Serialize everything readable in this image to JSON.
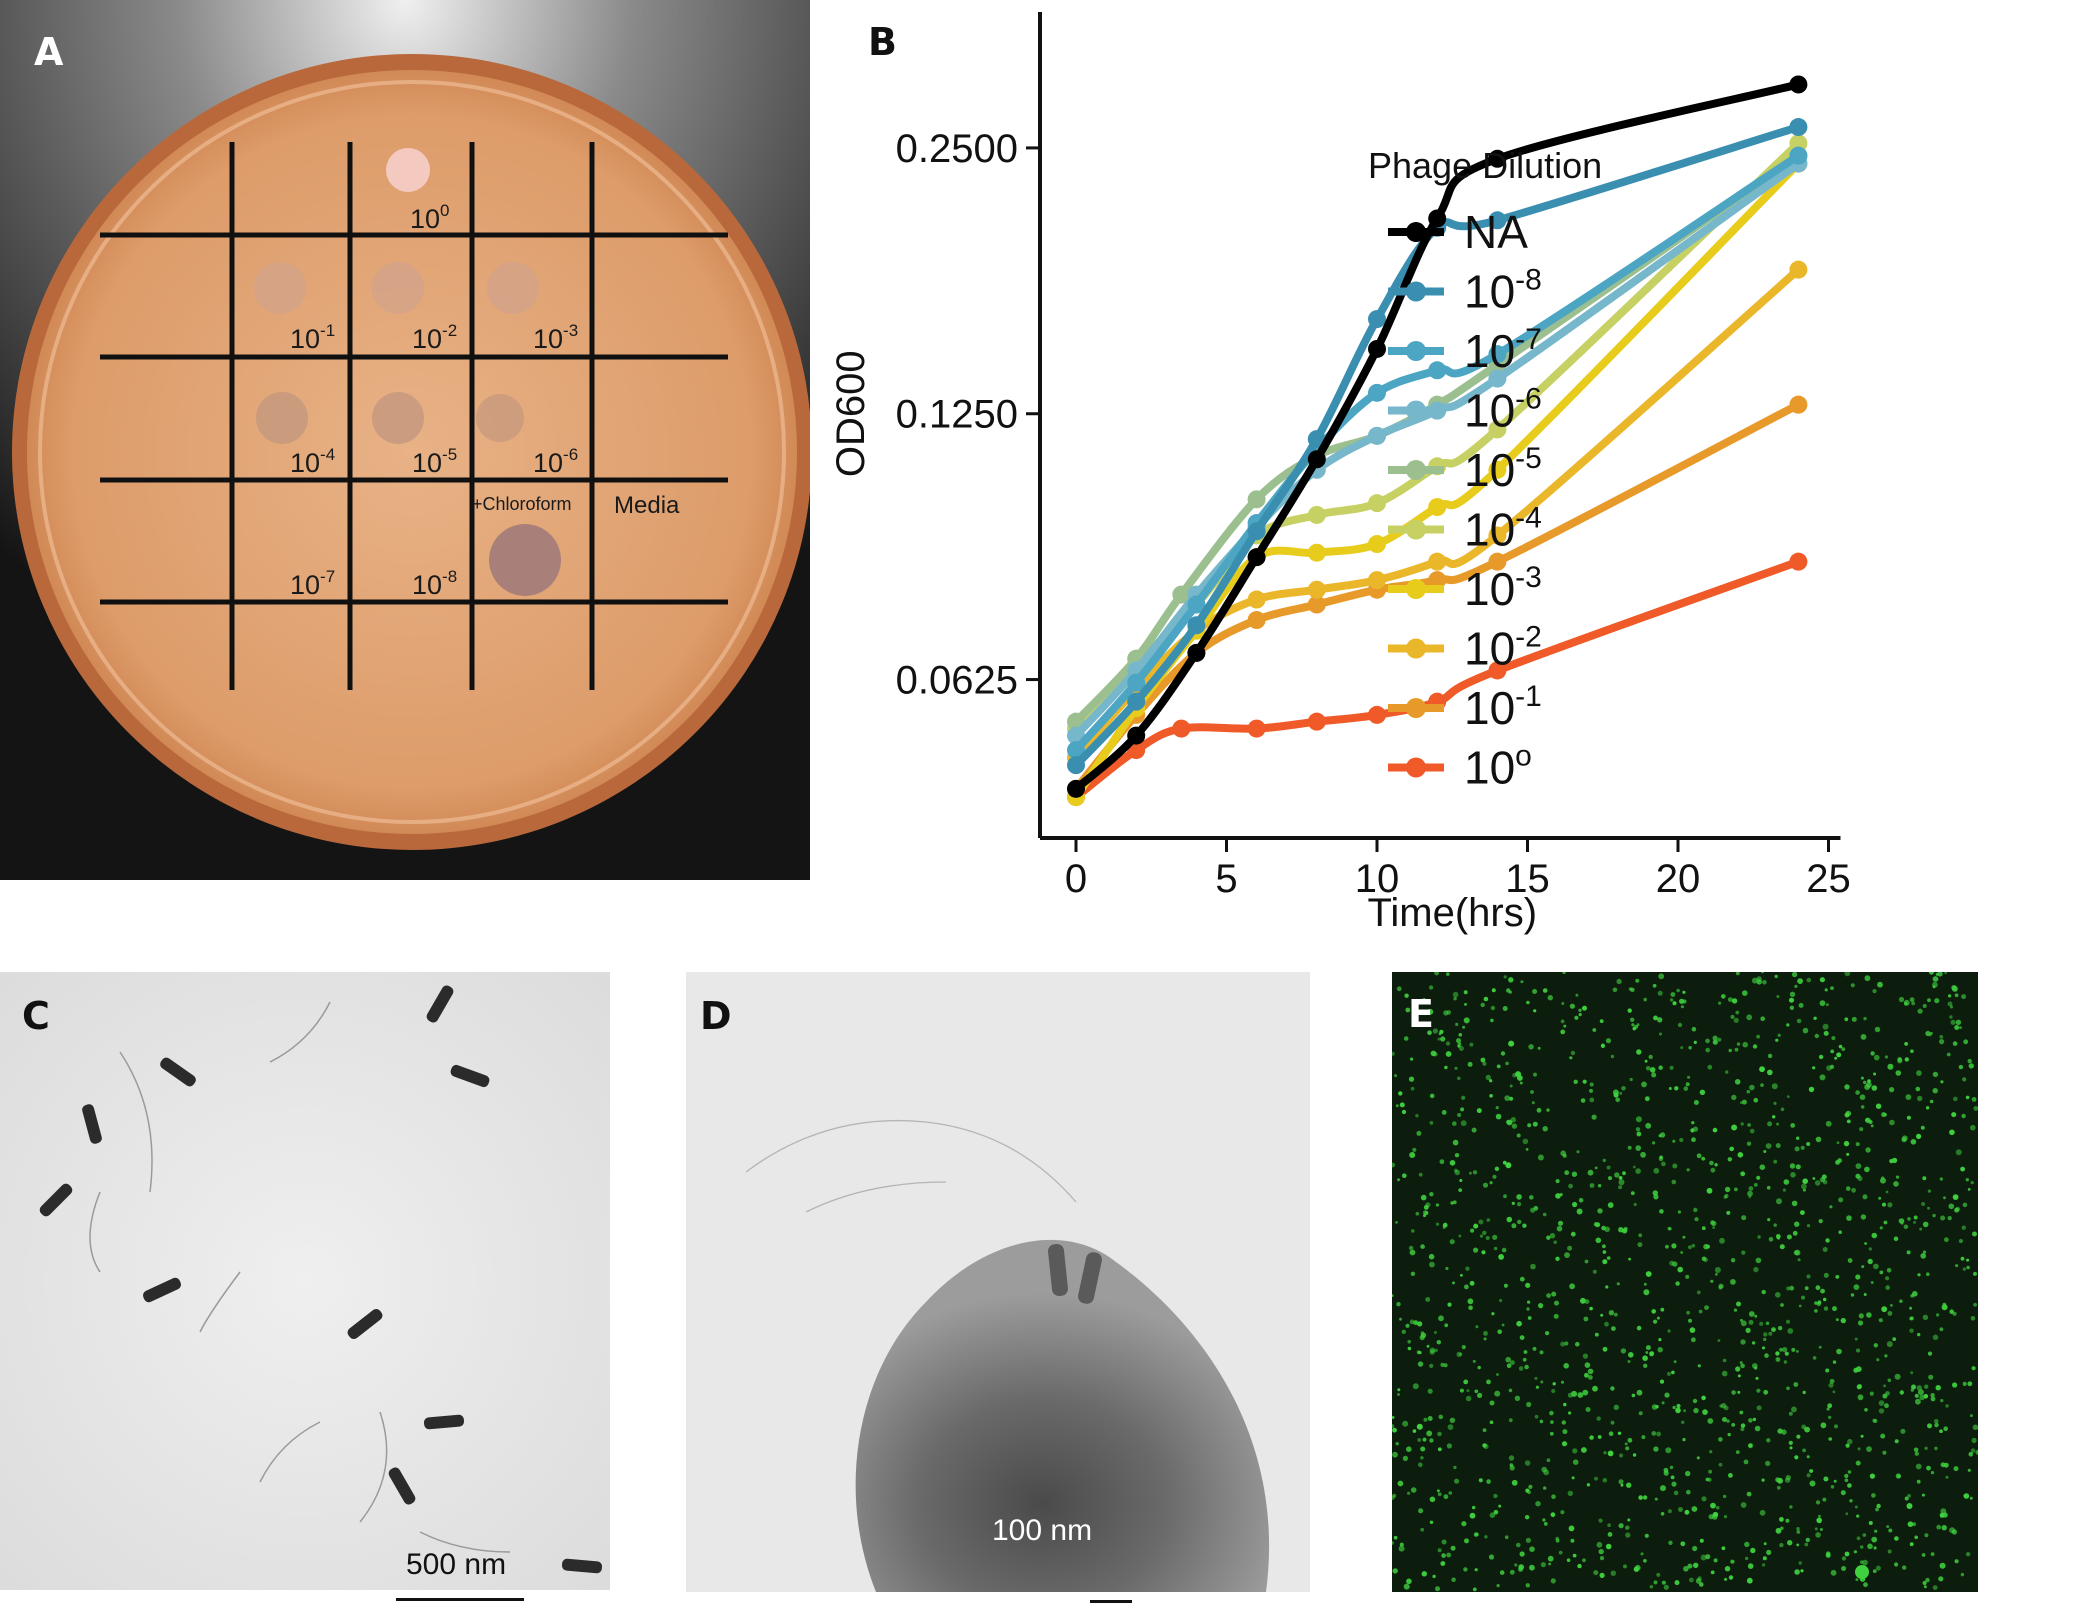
{
  "panels": {
    "a": {
      "label": "A",
      "plate_labels": {
        "d0": {
          "base": "10",
          "exp": "0"
        },
        "d1": {
          "base": "10",
          "exp": "-1"
        },
        "d2": {
          "base": "10",
          "exp": "-2"
        },
        "d3": {
          "base": "10",
          "exp": "-3"
        },
        "d4": {
          "base": "10",
          "exp": "-4"
        },
        "d5": {
          "base": "10",
          "exp": "-5"
        },
        "d6": {
          "base": "10",
          "exp": "-6"
        },
        "d7": {
          "base": "10",
          "exp": "-7"
        },
        "d8": {
          "base": "10",
          "exp": "-8"
        },
        "chloroform": "+Chloroform",
        "media": "Media"
      }
    },
    "b": {
      "label": "B"
    },
    "c": {
      "label": "C",
      "scale_bar": "500 nm"
    },
    "d": {
      "label": "D",
      "scale_bar": "100 nm"
    },
    "e": {
      "label": "E"
    }
  },
  "chart_data": {
    "type": "line",
    "title": "",
    "xlabel": "Time(hrs)",
    "ylabel": "OD600",
    "xlim": [
      -1,
      25
    ],
    "xticks": [
      0,
      5,
      10,
      15,
      20,
      25
    ],
    "yscale": "log2",
    "ylim": [
      0.042,
      0.34
    ],
    "yticks": [
      0.0625,
      0.125,
      0.25
    ],
    "ytick_labels": [
      "0.0625",
      "0.1250",
      "0.2500"
    ],
    "grid": false,
    "legend": {
      "title": "Phage Dilution",
      "position": "right"
    },
    "series": [
      {
        "name": "NA",
        "base": "NA",
        "exp": "",
        "color": "#000000",
        "x": [
          0,
          2,
          4,
          6,
          8,
          10,
          12,
          14,
          24
        ],
        "y": [
          0.047,
          0.054,
          0.067,
          0.086,
          0.111,
          0.148,
          0.208,
          0.243,
          0.295
        ]
      },
      {
        "name": "10-8",
        "base": "10",
        "exp": "-8",
        "color": "#3a8fb0",
        "x": [
          0,
          2,
          4,
          6,
          8,
          10,
          12,
          14,
          24
        ],
        "y": [
          0.05,
          0.059,
          0.072,
          0.092,
          0.117,
          0.16,
          0.203,
          0.207,
          0.264
        ]
      },
      {
        "name": "10-7",
        "base": "10",
        "exp": "-7",
        "color": "#4ba5c3",
        "x": [
          0,
          2,
          4,
          6,
          8,
          10,
          12,
          14,
          24
        ],
        "y": [
          0.052,
          0.062,
          0.076,
          0.094,
          0.114,
          0.132,
          0.14,
          0.146,
          0.245
        ]
      },
      {
        "name": "10-6",
        "base": "10",
        "exp": "-6",
        "color": "#76b7cb",
        "x": [
          0,
          2,
          4,
          6,
          8,
          10,
          12,
          14,
          24
        ],
        "y": [
          0.054,
          0.064,
          0.078,
          0.093,
          0.108,
          0.118,
          0.126,
          0.137,
          0.24
        ]
      },
      {
        "name": "10-5",
        "base": "10",
        "exp": "-5",
        "color": "#9cbf8f",
        "x": [
          0,
          2,
          3.5,
          6,
          8,
          10,
          12,
          14,
          24
        ],
        "y": [
          0.056,
          0.066,
          0.078,
          0.1,
          0.112,
          0.118,
          0.128,
          0.142,
          0.245
        ]
      },
      {
        "name": "10-4",
        "base": "10",
        "exp": "-4",
        "color": "#c7d163",
        "x": [
          0,
          2,
          4,
          6,
          8,
          10,
          12,
          14,
          24
        ],
        "y": [
          0.055,
          0.065,
          0.076,
          0.091,
          0.096,
          0.099,
          0.109,
          0.12,
          0.253
        ]
      },
      {
        "name": "10-3",
        "base": "10",
        "exp": "-3",
        "color": "#e8cc1c",
        "x": [
          0,
          2,
          4,
          6,
          8,
          10,
          12,
          14,
          24
        ],
        "y": [
          0.046,
          0.058,
          0.071,
          0.086,
          0.087,
          0.089,
          0.098,
          0.108,
          0.24
        ]
      },
      {
        "name": "10-2",
        "base": "10",
        "exp": "-2",
        "color": "#ebb72a",
        "x": [
          0,
          2,
          4,
          6,
          8,
          10,
          12,
          14,
          24
        ],
        "y": [
          0.051,
          0.061,
          0.071,
          0.077,
          0.079,
          0.081,
          0.085,
          0.091,
          0.182
        ]
      },
      {
        "name": "10-1",
        "base": "10",
        "exp": "-1",
        "color": "#e79a2a",
        "x": [
          0,
          2,
          4,
          6,
          8,
          10,
          12,
          14,
          24
        ],
        "y": [
          0.047,
          0.057,
          0.067,
          0.073,
          0.076,
          0.079,
          0.081,
          0.085,
          0.128
        ]
      },
      {
        "name": "10o",
        "base": "10",
        "exp": "o",
        "color": "#ef5a28",
        "x": [
          0,
          2,
          3.5,
          6,
          8,
          10,
          12,
          14,
          24
        ],
        "y": [
          0.046,
          0.052,
          0.055,
          0.055,
          0.056,
          0.057,
          0.059,
          0.064,
          0.085
        ]
      }
    ]
  }
}
